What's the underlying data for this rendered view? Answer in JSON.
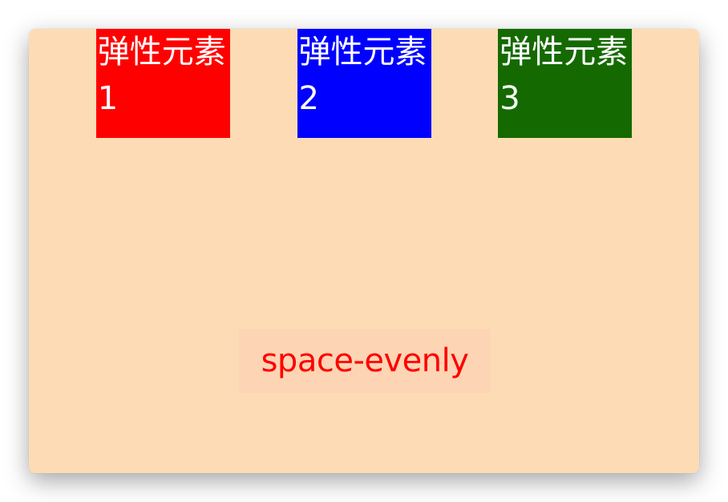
{
  "items": [
    {
      "label": "弹性元素1",
      "color": "#ff0000"
    },
    {
      "label": "弹性元素2",
      "color": "#0000ff"
    },
    {
      "label": "弹性元素3",
      "color": "#146a00"
    }
  ],
  "caption": {
    "text": "space-evenly",
    "color": "#ff0000"
  },
  "panel": {
    "background": "#fddcb5"
  }
}
